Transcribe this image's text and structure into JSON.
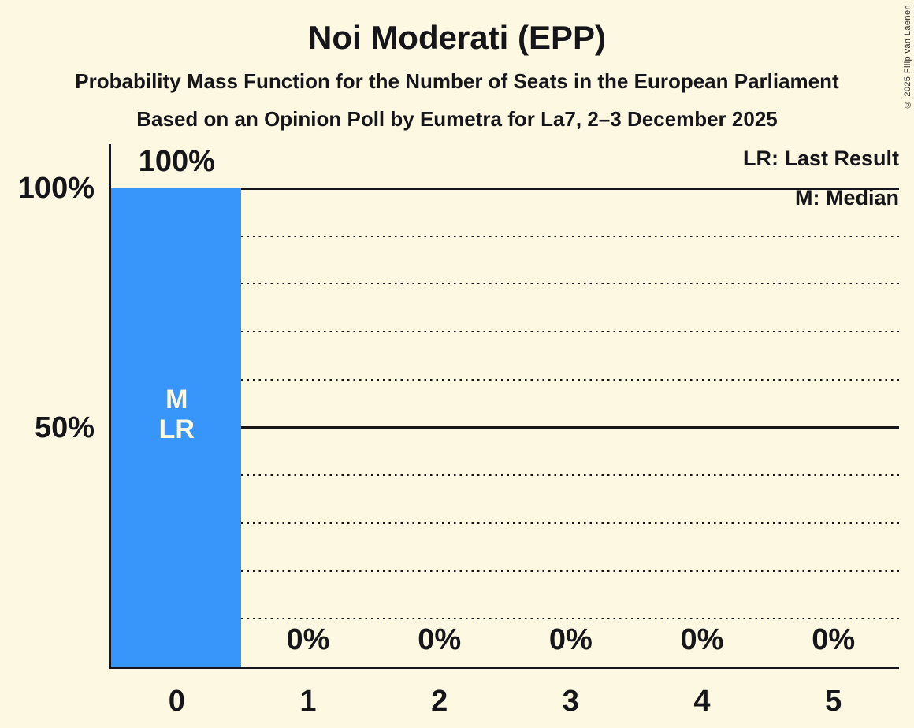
{
  "title": "Noi Moderati (EPP)",
  "subtitle1": "Probability Mass Function for the Number of Seats in the European Parliament",
  "subtitle2": "Based on an Opinion Poll by Eumetra for La7, 2–3 December 2025",
  "copyright": "© 2025 Filip van Laenen",
  "legend": {
    "last_result": "LR: Last Result",
    "median": "M: Median"
  },
  "colors": {
    "background": "#FDF8E2",
    "bar": "#3896FA",
    "text": "#15151A",
    "bar_text": "#FDF8E2"
  },
  "y_axis": {
    "ticks": [
      {
        "label": "100%",
        "value": 100
      },
      {
        "label": "50%",
        "value": 50
      }
    ]
  },
  "chart_data": {
    "type": "bar",
    "title": "Noi Moderati (EPP)",
    "xlabel": "",
    "ylabel": "",
    "ylim": [
      0,
      100
    ],
    "categories": [
      "0",
      "1",
      "2",
      "3",
      "4",
      "5"
    ],
    "values": [
      100,
      0,
      0,
      0,
      0,
      0
    ],
    "bar_labels": [
      "100%",
      "0%",
      "0%",
      "0%",
      "0%",
      "0%"
    ],
    "gridlines": {
      "solid": [
        50,
        100
      ],
      "dotted": [
        10,
        20,
        30,
        40,
        60,
        70,
        80,
        90
      ]
    },
    "annotation": {
      "category_index": 0,
      "lines": [
        "M",
        "LR"
      ]
    },
    "legend_position": "top-right",
    "grid": "horizontal-only"
  }
}
